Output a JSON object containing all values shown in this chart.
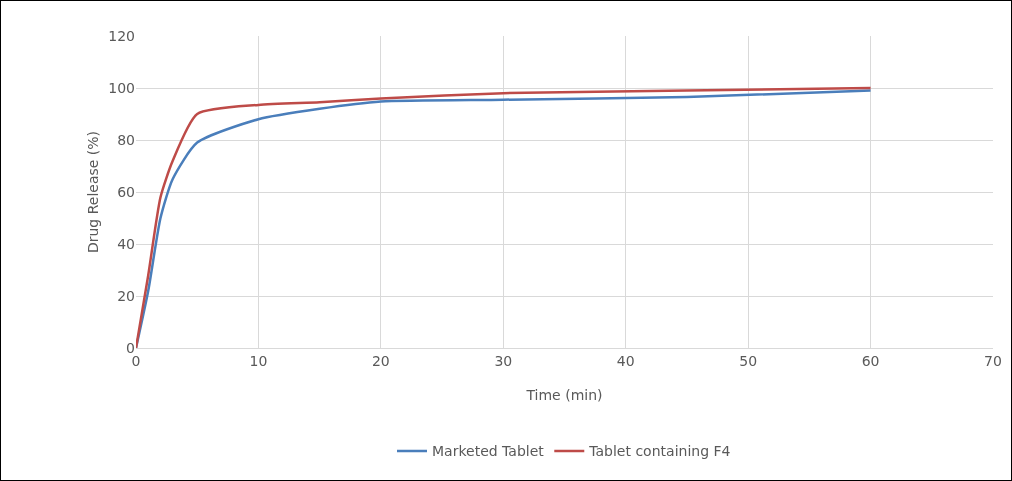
{
  "chart_data": {
    "type": "line",
    "xlabel": "Time (min)",
    "ylabel": "Drug Release (%)",
    "x": [
      0,
      1,
      2,
      3,
      5,
      10,
      15,
      20,
      30,
      45,
      60
    ],
    "series": [
      {
        "name": "Marketed Tablet",
        "color": "#4a7ebb",
        "values": [
          0,
          22,
          50,
          65,
          79,
          88,
          92,
          94.8,
          95.5,
          96.5,
          99
        ]
      },
      {
        "name": "Tablet containing F4",
        "color": "#be4b48",
        "values": [
          0,
          28,
          58,
          72,
          90,
          93.5,
          94.5,
          96,
          98,
          99,
          100
        ]
      }
    ],
    "xlim": [
      0,
      70
    ],
    "xticks": [
      0,
      10,
      20,
      30,
      40,
      50,
      60,
      70
    ],
    "ylim": [
      0,
      120
    ],
    "yticks": [
      0,
      20,
      40,
      60,
      80,
      100,
      120
    ],
    "grid": true,
    "legend": "bottom",
    "marker": "none",
    "line_style": "solid"
  }
}
